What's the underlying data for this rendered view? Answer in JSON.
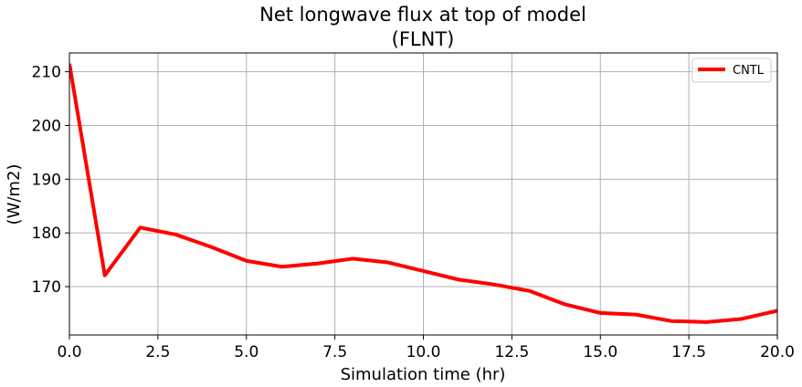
{
  "chart_data": {
    "type": "line",
    "title_line1": "Net longwave flux at top of model",
    "title_line2": "(FLNT)",
    "xlabel": "Simulation time (hr)",
    "ylabel": "(W/m2)",
    "xlim": [
      0,
      20
    ],
    "ylim": [
      161,
      213.5
    ],
    "xticks": [
      0,
      2.5,
      5,
      7.5,
      10,
      12.5,
      15,
      17.5,
      20
    ],
    "xtick_labels": [
      "0.0",
      "2.5",
      "5.0",
      "7.5",
      "10.0",
      "12.5",
      "15.0",
      "17.5",
      "20.0"
    ],
    "yticks": [
      170,
      180,
      190,
      200,
      210
    ],
    "ytick_labels": [
      "170",
      "180",
      "190",
      "200",
      "210"
    ],
    "grid": true,
    "legend_position": "top-right",
    "series": [
      {
        "name": "CNTL",
        "color": "#ff0000",
        "x": [
          0,
          1,
          2,
          3,
          4,
          5,
          6,
          7,
          8,
          9,
          10,
          11,
          12,
          13,
          14,
          15,
          16,
          17,
          18,
          19,
          20
        ],
        "y": [
          211.5,
          172.1,
          181.0,
          179.7,
          177.4,
          174.8,
          173.7,
          174.3,
          175.2,
          174.5,
          172.9,
          171.3,
          170.4,
          169.2,
          166.7,
          165.1,
          164.8,
          163.6,
          163.4,
          164.0,
          165.5
        ]
      }
    ]
  }
}
